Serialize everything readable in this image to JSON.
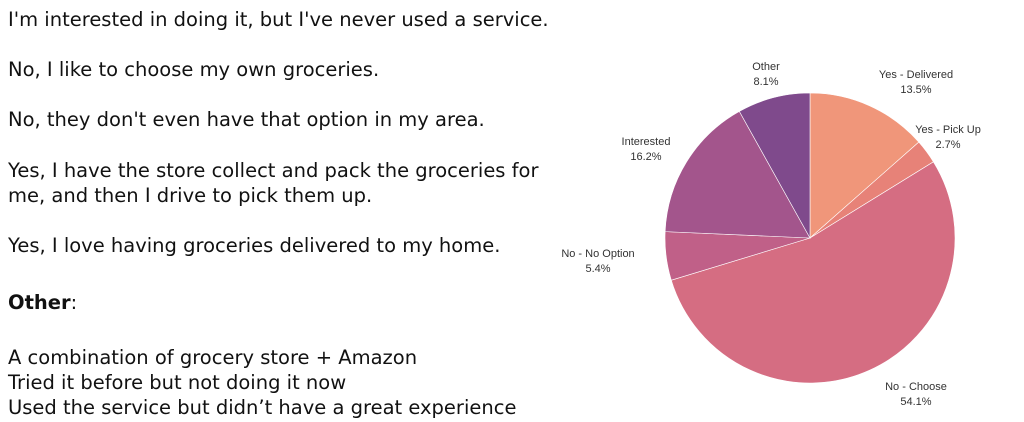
{
  "answers": [
    "I'm interested in doing it, but I've never used a service.",
    "No, I like to choose my own groceries.",
    "No, they don't even have that option in my area.",
    "Yes, I have the store collect and pack the groceries for",
    "me, and then I drive to pick them up.",
    "Yes, I love having groceries delivered to my home."
  ],
  "other": {
    "heading": "Other",
    "colon": ":",
    "lines": [
      "A combination of grocery store + Amazon",
      "Tried it before but not doing it now",
      "Used the service but didn’t have a great experience"
    ]
  },
  "chart_data": {
    "type": "pie",
    "start_angle_deg": 0,
    "direction": "clockwise",
    "slices": [
      {
        "label": "Yes - Delivered",
        "value_label": "13.5%",
        "value": 13.5,
        "color": "#f0967a"
      },
      {
        "label": "Yes - Pick Up",
        "value_label": "2.7%",
        "value": 2.7,
        "color": "#e78278"
      },
      {
        "label": "No - Choose",
        "value_label": "54.1%",
        "value": 54.1,
        "color": "#d56d82"
      },
      {
        "label": "No - No Option",
        "value_label": "5.4%",
        "value": 5.4,
        "color": "#c06088"
      },
      {
        "label": "Interested",
        "value_label": "16.2%",
        "value": 16.2,
        "color": "#a3558c"
      },
      {
        "label": "Other",
        "value_label": "8.1%",
        "value": 8.1,
        "color": "#7f4a8c"
      }
    ]
  }
}
